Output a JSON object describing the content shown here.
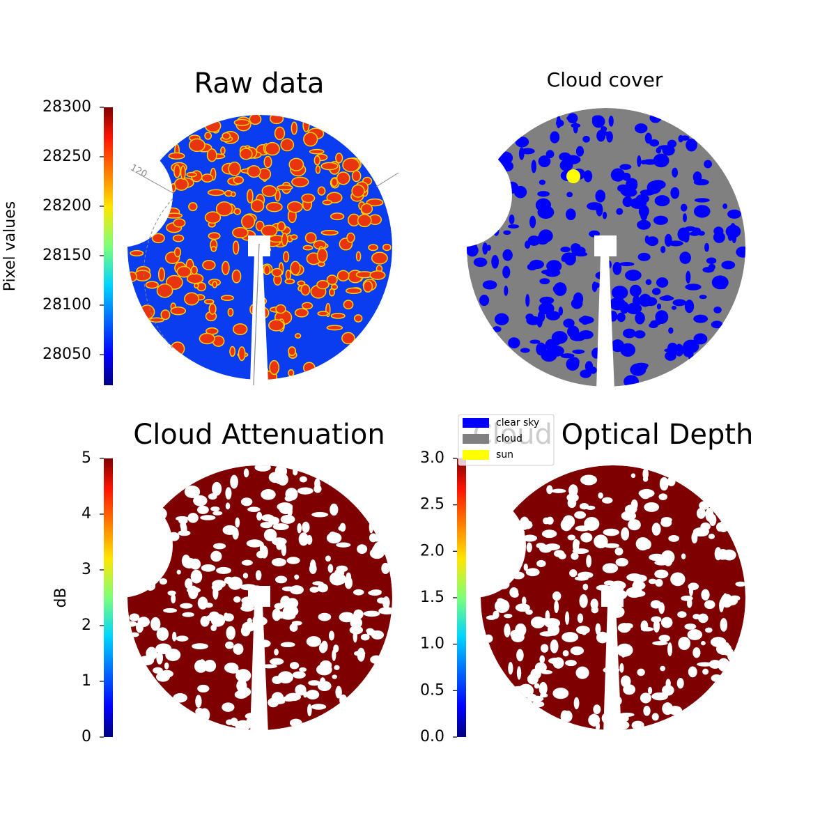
{
  "chart_data": [
    {
      "type": "image",
      "title": "Raw data",
      "annotation": "120",
      "colorbar": {
        "label": "Pixel values",
        "lim": [
          28019,
          28300
        ],
        "ticks": [
          28050,
          28100,
          28150,
          28200,
          28250,
          28300
        ]
      }
    },
    {
      "type": "image",
      "title": "Cloud cover",
      "series": [
        {
          "name": "clear sky",
          "color": "#0000ff"
        },
        {
          "name": "cloud",
          "color": "#808080"
        },
        {
          "name": "sun",
          "color": "#ffff00"
        }
      ]
    },
    {
      "type": "image",
      "title": "Cloud Attenuation",
      "colorbar": {
        "label": "dB",
        "lim": [
          0,
          5
        ],
        "ticks": [
          0,
          1,
          2,
          3,
          4,
          5
        ]
      }
    },
    {
      "type": "image",
      "title": "Cloud Optical Depth",
      "colorbar": {
        "lim": [
          0,
          3
        ],
        "ticks": [
          {
            "value": 0,
            "label": "0.0"
          },
          0.5,
          {
            "value": 1,
            "label": "1.0"
          },
          1.5,
          {
            "value": 2,
            "label": "2.0"
          },
          2.5,
          {
            "value": 3,
            "label": "3.0"
          }
        ]
      }
    }
  ]
}
